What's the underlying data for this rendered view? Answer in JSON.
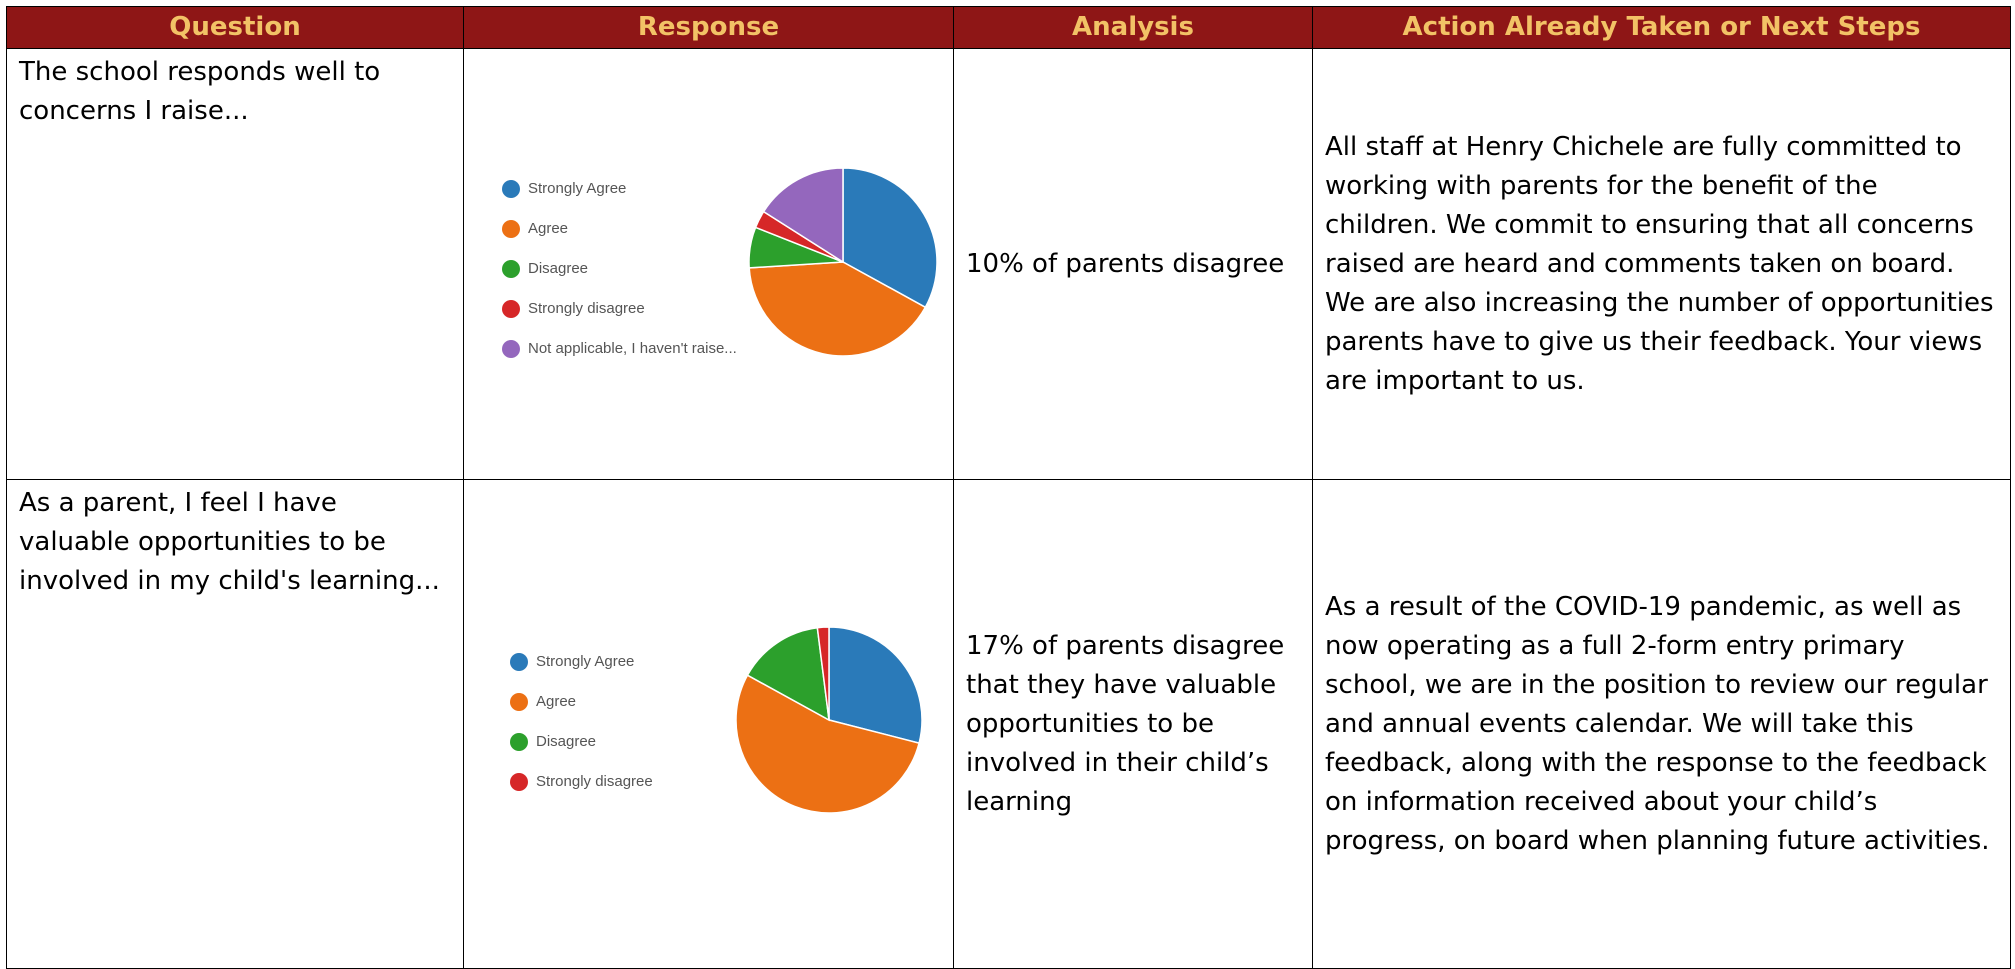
{
  "table": {
    "headers": [
      "Question",
      "Response",
      "Analysis",
      "Action Already Taken or Next Steps"
    ],
    "rows": [
      {
        "question": "The school responds well to concerns I raise...",
        "chart": {
          "type": "pie",
          "categories": [
            "Strongly Agree",
            "Agree",
            "Disagree",
            "Strongly disagree",
            "Not applicable, I haven't raise..."
          ],
          "values": [
            33,
            41,
            7,
            3,
            16
          ],
          "colors": [
            "#2a7ab9",
            "#ec7014",
            "#2ca02c",
            "#d62728",
            "#9467bd"
          ]
        },
        "analysis": "10% of parents disagree",
        "action": "All staff at Henry Chichele are fully committed to working with parents for the benefit of the children. We commit to ensuring that all concerns raised are heard and comments taken on board. We are also increasing the number of opportunities parents have to give us their feedback. Your views are important to us."
      },
      {
        "question": "As a parent, I feel I have valuable opportunities to be involved in my child's learning...",
        "chart": {
          "type": "pie",
          "categories": [
            "Strongly Agree",
            "Agree",
            "Disagree",
            "Strongly disagree"
          ],
          "values": [
            29,
            54,
            15,
            2
          ],
          "colors": [
            "#2a7ab9",
            "#ec7014",
            "#2ca02c",
            "#d62728"
          ]
        },
        "analysis": "17% of parents disagree that they have valuable opportunities to be involved in their child’s learning",
        "action": "As a result of the COVID-19 pandemic, as well as now operating as a full 2-form entry primary school, we are in the position to review our regular and annual events calendar. We will take this feedback, along with the response to the feedback on information received about your child’s progress, on board when planning future activities."
      }
    ]
  }
}
